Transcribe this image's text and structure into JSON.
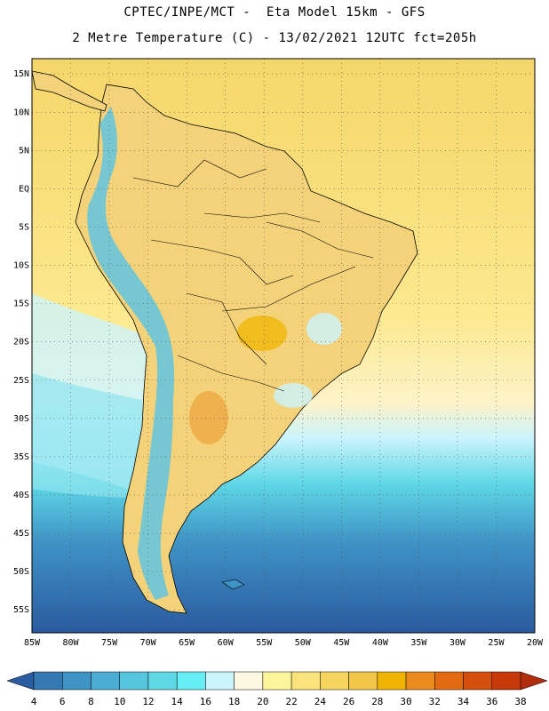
{
  "header": {
    "title_line1": "CPTEC/INPE/MCT -  Eta Model 15km - GFS",
    "title_line2": "2 Metre Temperature (C) - 13/02/2021 12UTC fct=205h"
  },
  "map": {
    "lon_range": [
      -85,
      -20
    ],
    "lat_range": [
      -58,
      17
    ],
    "lat_labels": [
      {
        "lat": 15,
        "text": "15N"
      },
      {
        "lat": 10,
        "text": "10N"
      },
      {
        "lat": 5,
        "text": "5N"
      },
      {
        "lat": 0,
        "text": "EQ"
      },
      {
        "lat": -5,
        "text": "5S"
      },
      {
        "lat": -10,
        "text": "10S"
      },
      {
        "lat": -15,
        "text": "15S"
      },
      {
        "lat": -20,
        "text": "20S"
      },
      {
        "lat": -25,
        "text": "25S"
      },
      {
        "lat": -30,
        "text": "30S"
      },
      {
        "lat": -35,
        "text": "35S"
      },
      {
        "lat": -40,
        "text": "40S"
      },
      {
        "lat": -45,
        "text": "45S"
      },
      {
        "lat": -50,
        "text": "50S"
      },
      {
        "lat": -55,
        "text": "55S"
      }
    ],
    "lon_labels": [
      {
        "lon": -85,
        "text": "85W"
      },
      {
        "lon": -80,
        "text": "80W"
      },
      {
        "lon": -75,
        "text": "75W"
      },
      {
        "lon": -70,
        "text": "70W"
      },
      {
        "lon": -65,
        "text": "65W"
      },
      {
        "lon": -60,
        "text": "60W"
      },
      {
        "lon": -55,
        "text": "55W"
      },
      {
        "lon": -50,
        "text": "50W"
      },
      {
        "lon": -45,
        "text": "45W"
      },
      {
        "lon": -40,
        "text": "40W"
      },
      {
        "lon": -35,
        "text": "35W"
      },
      {
        "lon": -30,
        "text": "30W"
      },
      {
        "lon": -25,
        "text": "25W"
      },
      {
        "lon": -20,
        "text": "20W"
      }
    ]
  },
  "colorbar": {
    "levels": [
      "4",
      "6",
      "8",
      "10",
      "12",
      "14",
      "16",
      "18",
      "20",
      "22",
      "24",
      "26",
      "28",
      "30",
      "32",
      "34",
      "36",
      "38"
    ],
    "colors": [
      "#2a5aa0",
      "#3478b4",
      "#3f94c6",
      "#4aaed4",
      "#55c6de",
      "#5fd8e6",
      "#66eef6",
      "#ccf4fc",
      "#fdf8e2",
      "#fdf59a",
      "#f9e37a",
      "#f5d55e",
      "#f2c747",
      "#f0b400",
      "#eb8b1e",
      "#e26a10",
      "#d4500c",
      "#c8390a",
      "#b12c0c"
    ]
  }
}
